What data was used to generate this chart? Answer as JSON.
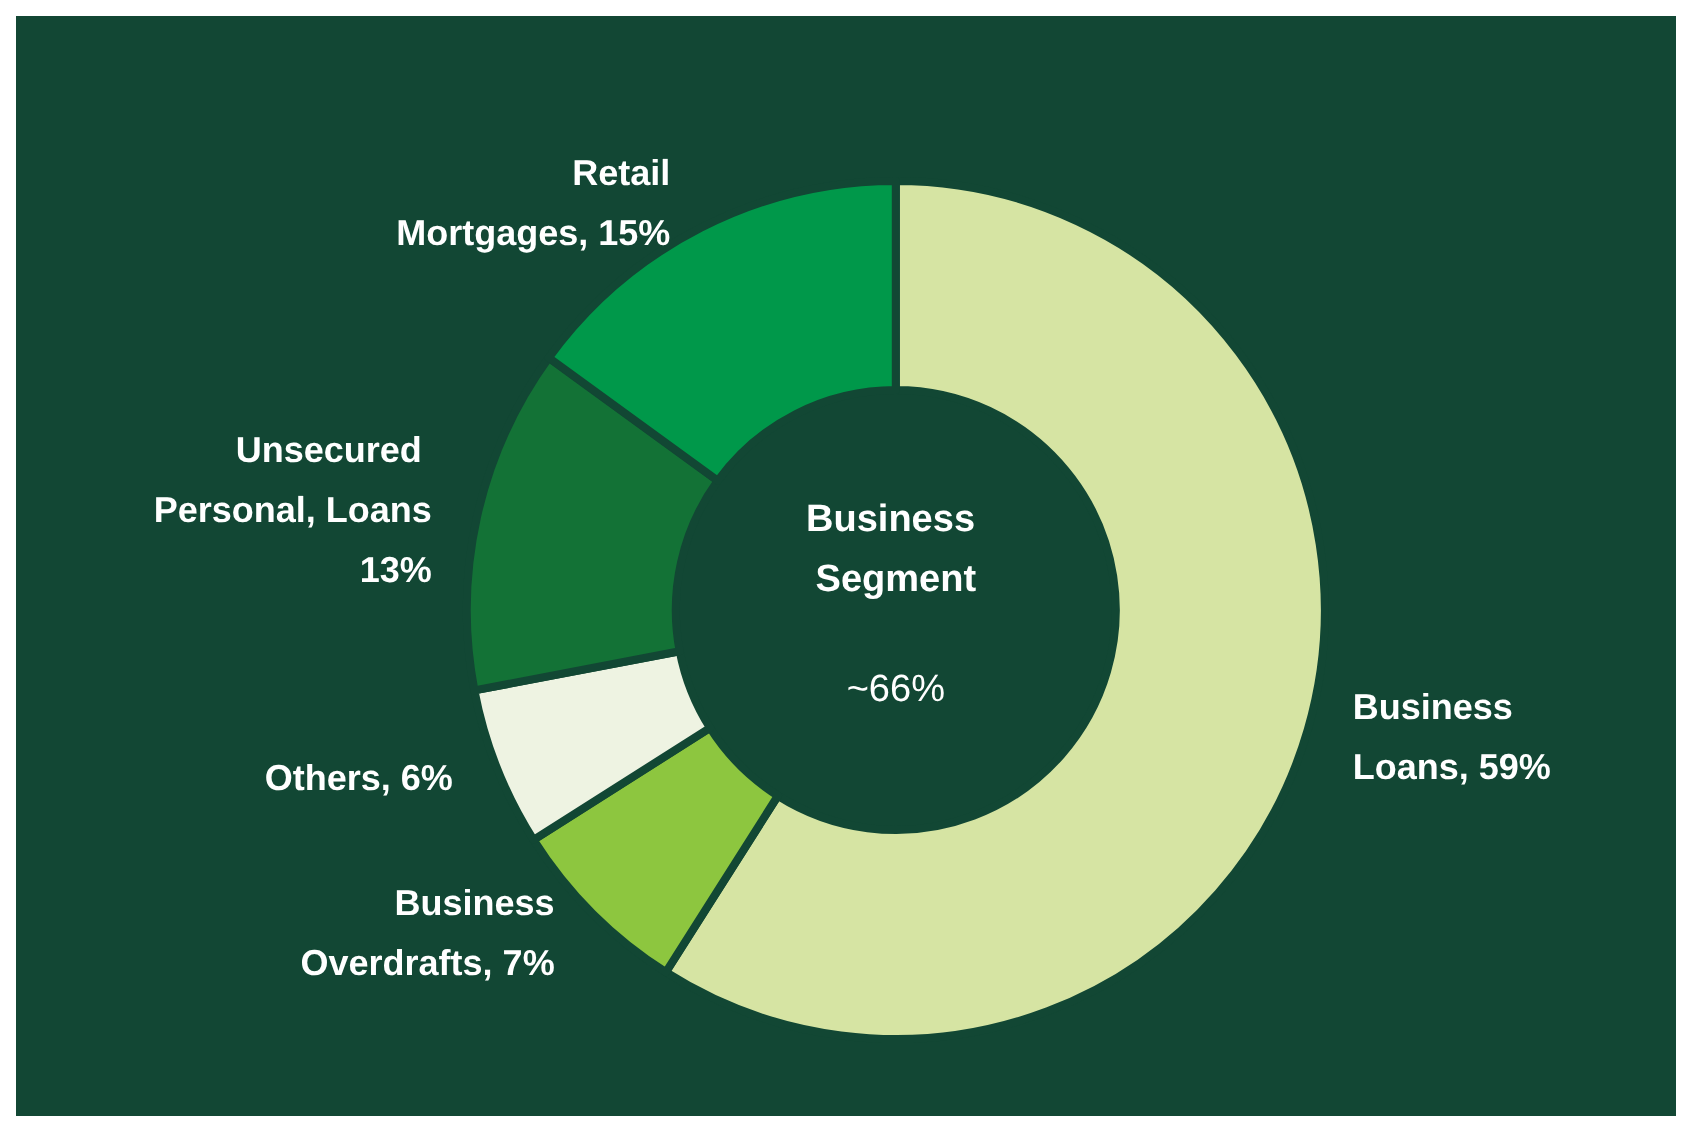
{
  "chart_data": {
    "type": "donut",
    "categories": [
      "Business Loans",
      "Business Overdrafts",
      "Others",
      "Unsecured Personal, Loans",
      "Retail Mortgages"
    ],
    "values": [
      59,
      7,
      6,
      13,
      15
    ],
    "colors": [
      "#d6e4a3",
      "#8dc63f",
      "#eef3e2",
      "#137236",
      "#00984a"
    ],
    "value_labels": [
      "59%",
      "7%",
      "6%",
      "13%",
      "15%"
    ],
    "annotations": [
      "Business Segment",
      "~66%"
    ],
    "legend": false
  }
}
